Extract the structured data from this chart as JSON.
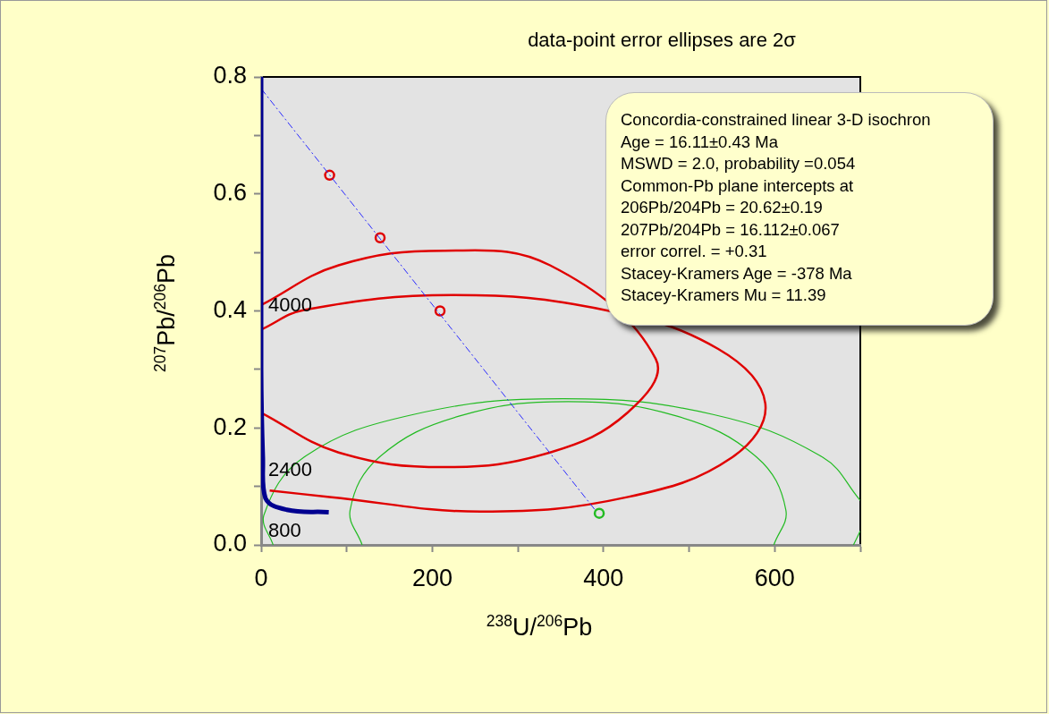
{
  "chart_data": {
    "type": "scatter",
    "title": "data-point error ellipses are 2σ",
    "xlabel": "$^{238}$U/$^{206}$Pb",
    "ylabel": "$^{207}$Pb/$^{206}$Pb",
    "xlim": [
      0,
      700
    ],
    "xticks": [
      0,
      {
        "value": 100,
        "label": null
      },
      200,
      {
        "value": 300,
        "label": null
      },
      400,
      {
        "value": 500,
        "label": null
      },
      600,
      {
        "value": 700,
        "label": null
      }
    ],
    "ylim": [
      0,
      0.8
    ],
    "yticks": [
      {
        "value": 0,
        "label": "0.0"
      },
      {
        "value": 0.1,
        "label": null
      },
      0.2,
      {
        "value": 0.3,
        "label": null
      },
      0.4,
      {
        "value": 0.5,
        "label": null
      },
      0.6,
      {
        "value": 0.7,
        "label": null
      },
      0.8
    ],
    "grid": false,
    "legend": false,
    "annotations": [
      "Concordia-constrained linear 3-D isochron\nAge = 16.11±0.43 Ma\nMSWD = 2.0,  probability =0.054\nCommon-Pb plane intercepts at\n206Pb/204Pb = 20.62±0.19\n207Pb/204Pb = 16.112±0.067\nerror correl. = +0.31\nStacey-Kramers Age = -378 Ma\nStacey-Kramers Mu  = 11.39",
      "4000",
      "2400",
      "800"
    ],
    "series": [
      {
        "type": "line",
        "color": "#000090",
        "x": [
          0,
          0,
          2,
          5,
          30,
          79
        ],
        "values": [
          0.8,
          0.3,
          0.15,
          0.08,
          0.06,
          0.056
        ]
      },
      {
        "type": "line",
        "line_style": "dashed",
        "color": "#2a2aff",
        "x": [
          0,
          390
        ],
        "values": [
          0.78,
          0.06
        ]
      },
      {
        "type": "line",
        "color": "#e00000",
        "x": [
          0,
          90.5,
          214,
          337.5,
          461,
          428,
          337.5,
          214,
          90.5,
          0
        ],
        "values": [
          0.41,
          0.478,
          0.503,
          0.478,
          0.318,
          0.226,
          0.158,
          0.133,
          0.158,
          0.226
        ]
      },
      {
        "type": "line",
        "color": "#e00000",
        "x": [
          0,
          51.2,
          223.5,
          400.2,
          534,
          589,
          550.5,
          428.8,
          256.5,
          79.8,
          10
        ],
        "values": [
          0.368,
          0.402,
          0.427,
          0.402,
          0.335,
          0.242,
          0.15,
          0.082,
          0.057,
          0.082,
          0.093
        ]
      },
      {
        "type": "line",
        "color": "#22bb22",
        "x": [
          700,
          656,
          528,
          353,
          178,
          50,
          3,
          14,
          null,
          692,
          700
        ],
        "values": [
          0.076,
          0.15,
          0.223,
          0.25,
          0.223,
          0.15,
          0.05,
          0,
          null,
          0,
          0.024
        ]
      },
      {
        "type": "line",
        "color": "#22bb22",
        "x": [
          599,
          613,
          579,
          486,
          358.5,
          231,
          138,
          104,
          118
        ],
        "values": [
          0,
          0.06,
          0.15,
          0.22,
          0.245,
          0.22,
          0.15,
          0.06,
          0
        ]
      },
      {
        "type": "scatter",
        "marker": "circle",
        "color": "#e00000",
        "x": [
          80,
          139,
          209
        ],
        "values": [
          0.632,
          0.525,
          0.4
        ]
      },
      {
        "type": "scatter",
        "marker": "circle",
        "color": "#22bb22",
        "x": [
          395
        ],
        "values": [
          0.054
        ]
      }
    ]
  }
}
